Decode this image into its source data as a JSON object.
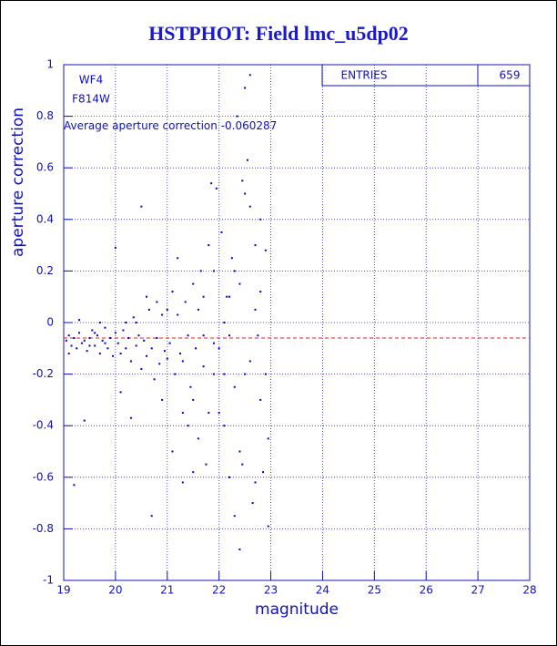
{
  "chart_data": {
    "type": "scatter",
    "title": "HSTPHOT: Field lmc_u5dp02",
    "x_label": "magnitude",
    "y_label": "aperture correction",
    "annotations": [
      "WF4",
      "F814W"
    ],
    "reference_line": {
      "label": "Average aperture correction",
      "value": -0.060287,
      "color": "#e02020"
    },
    "stats": {
      "label": "ENTRIES",
      "value": 659
    },
    "color": "#0000d0",
    "grid": true,
    "xlim": [
      19,
      28
    ],
    "xticks": [
      19,
      20,
      21,
      22,
      23,
      24,
      25,
      26,
      27,
      28
    ],
    "ylim": [
      -1,
      1
    ],
    "yticks": [
      -1,
      -0.8,
      -0.6,
      -0.4,
      -0.2,
      0,
      0.2,
      0.4,
      0.6,
      0.8,
      1
    ],
    "x": [
      19.05,
      19.1,
      19.15,
      19.2,
      19.25,
      19.3,
      19.35,
      19.4,
      19.45,
      19.5,
      19.55,
      19.6,
      19.65,
      19.7,
      19.75,
      19.8,
      19.85,
      19.9,
      19.95,
      20.0,
      19.3,
      19.7,
      19.2,
      19.4,
      19.1,
      19.5,
      19.8,
      19.6,
      20.05,
      20.1,
      20.15,
      20.2,
      20.25,
      20.3,
      20.35,
      20.4,
      20.45,
      20.5,
      20.55,
      20.6,
      20.65,
      20.7,
      20.75,
      20.8,
      20.85,
      20.9,
      20.95,
      20.0,
      20.5,
      20.3,
      20.1,
      20.7,
      20.4,
      20.6,
      20.2,
      20.9,
      20.8,
      21.0,
      21.05,
      21.1,
      21.15,
      21.2,
      21.25,
      21.3,
      21.35,
      21.4,
      21.45,
      21.5,
      21.55,
      21.6,
      21.65,
      21.7,
      21.75,
      21.8,
      21.85,
      21.9,
      21.95,
      21.1,
      21.3,
      21.5,
      21.7,
      21.9,
      21.2,
      21.6,
      21.4,
      21.8,
      21.0,
      21.3,
      21.7,
      21.9,
      21.5,
      22.0,
      22.05,
      22.1,
      22.15,
      22.2,
      22.25,
      22.3,
      22.35,
      22.4,
      22.45,
      22.5,
      22.55,
      22.6,
      22.65,
      22.7,
      22.75,
      22.8,
      22.85,
      22.9,
      22.95,
      22.2,
      22.4,
      22.6,
      22.8,
      22.1,
      22.3,
      22.5,
      22.7,
      22.9,
      22.0,
      22.4,
      22.6,
      22.8,
      22.5,
      22.3,
      22.7,
      22.95,
      22.1,
      22.2,
      22.45
    ],
    "y": [
      -0.07,
      -0.05,
      -0.09,
      -0.06,
      -0.1,
      -0.04,
      -0.08,
      -0.07,
      -0.11,
      -0.06,
      -0.03,
      -0.09,
      -0.05,
      -0.12,
      -0.07,
      -0.02,
      -0.1,
      -0.06,
      -0.13,
      -0.04,
      0.01,
      0.0,
      -0.63,
      -0.38,
      -0.12,
      -0.09,
      -0.08,
      -0.04,
      -0.08,
      -0.12,
      -0.03,
      -0.1,
      -0.06,
      -0.15,
      0.02,
      -0.09,
      -0.05,
      -0.18,
      -0.07,
      -0.13,
      0.05,
      -0.1,
      -0.22,
      -0.06,
      -0.16,
      0.03,
      -0.11,
      0.29,
      0.45,
      -0.37,
      -0.27,
      -0.75,
      0.0,
      0.1,
      0.0,
      -0.3,
      0.08,
      -0.14,
      -0.08,
      0.12,
      -0.2,
      0.03,
      -0.12,
      -0.35,
      0.08,
      -0.05,
      -0.25,
      0.15,
      -0.1,
      -0.45,
      0.2,
      -0.17,
      -0.55,
      0.3,
      0.54,
      -0.08,
      0.52,
      -0.5,
      -0.62,
      -0.3,
      0.1,
      -0.2,
      0.25,
      0.05,
      -0.4,
      -0.35,
      0.05,
      -0.15,
      -0.05,
      0.2,
      -0.58,
      -0.1,
      0.35,
      -0.4,
      0.1,
      -0.6,
      0.25,
      -0.25,
      0.8,
      -0.5,
      0.55,
      0.91,
      0.63,
      0.96,
      -0.7,
      0.3,
      -0.05,
      0.12,
      -0.58,
      0.28,
      -0.45,
      -0.05,
      -0.88,
      0.45,
      -0.3,
      0.0,
      0.2,
      -0.2,
      0.05,
      -0.2,
      -0.35,
      0.15,
      -0.15,
      0.4,
      0.5,
      -0.75,
      -0.62,
      -0.79,
      -0.2,
      0.1,
      -0.55
    ]
  }
}
